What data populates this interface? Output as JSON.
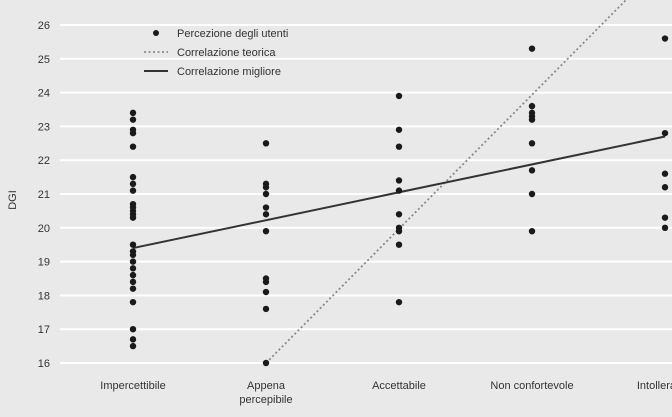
{
  "chart_data": {
    "type": "scatter",
    "title": "",
    "xlabel": "",
    "ylabel": "DGI",
    "ylim": [
      16,
      26
    ],
    "y_ticks": [
      16,
      17,
      18,
      19,
      20,
      21,
      22,
      23,
      24,
      25,
      26
    ],
    "grid": true,
    "categories": [
      [
        "Impercettibile"
      ],
      [
        "Appena",
        "percepibile"
      ],
      [
        "Accettabile"
      ],
      [
        "Non confortevole"
      ],
      [
        "Intollerabile"
      ]
    ],
    "legend": {
      "placement": "top-left",
      "entries": [
        {
          "label": "Percezione degli utenti",
          "marker": "dot"
        },
        {
          "label": "Correlazione teorica",
          "marker": "dotted-line"
        },
        {
          "label": "Correlazione migliore",
          "marker": "solid-line"
        }
      ]
    },
    "series": [
      {
        "name": "Percezione degli utenti",
        "kind": "points",
        "points": [
          [
            0,
            23.4
          ],
          [
            0,
            23.2
          ],
          [
            0,
            22.9
          ],
          [
            0,
            22.8
          ],
          [
            0,
            22.4
          ],
          [
            0,
            21.5
          ],
          [
            0,
            21.3
          ],
          [
            0,
            21.1
          ],
          [
            0,
            20.7
          ],
          [
            0,
            20.6
          ],
          [
            0,
            20.5
          ],
          [
            0,
            20.4
          ],
          [
            0,
            20.3
          ],
          [
            0,
            19.5
          ],
          [
            0,
            19.3
          ],
          [
            0,
            19.2
          ],
          [
            0,
            19.0
          ],
          [
            0,
            18.8
          ],
          [
            0,
            18.6
          ],
          [
            0,
            18.4
          ],
          [
            0,
            18.2
          ],
          [
            0,
            17.8
          ],
          [
            0,
            17.0
          ],
          [
            0,
            16.7
          ],
          [
            0,
            16.5
          ],
          [
            1,
            22.5
          ],
          [
            1,
            21.3
          ],
          [
            1,
            21.2
          ],
          [
            1,
            21.0
          ],
          [
            1,
            20.6
          ],
          [
            1,
            20.4
          ],
          [
            1,
            19.9
          ],
          [
            1,
            18.5
          ],
          [
            1,
            18.4
          ],
          [
            1,
            18.1
          ],
          [
            1,
            17.6
          ],
          [
            1,
            16.0
          ],
          [
            2,
            23.9
          ],
          [
            2,
            22.9
          ],
          [
            2,
            22.4
          ],
          [
            2,
            21.4
          ],
          [
            2,
            21.1
          ],
          [
            2,
            20.4
          ],
          [
            2,
            20.0
          ],
          [
            2,
            19.9
          ],
          [
            2,
            19.5
          ],
          [
            2,
            17.8
          ],
          [
            3,
            25.3
          ],
          [
            3,
            23.6
          ],
          [
            3,
            23.4
          ],
          [
            3,
            23.3
          ],
          [
            3,
            23.2
          ],
          [
            3,
            22.5
          ],
          [
            3,
            21.7
          ],
          [
            3,
            21.0
          ],
          [
            3,
            19.9
          ],
          [
            4,
            25.6
          ],
          [
            4,
            22.8
          ],
          [
            4,
            21.6
          ],
          [
            4,
            21.2
          ],
          [
            4,
            20.3
          ],
          [
            4,
            20.0
          ]
        ]
      },
      {
        "name": "Correlazione teorica",
        "kind": "line",
        "style": "dotted",
        "points": [
          [
            1,
            16.0
          ],
          [
            4.1,
            28.3
          ]
        ]
      },
      {
        "name": "Correlazione migliore",
        "kind": "line",
        "style": "solid",
        "points": [
          [
            0,
            19.4
          ],
          [
            4,
            22.7
          ]
        ]
      }
    ],
    "colors": {
      "background": "#e9e9e9",
      "grid": "#ffffff",
      "points": "#1a1a1a",
      "line_best": "#333333",
      "line_theoretical": "#8a8a8a",
      "text": "#333333"
    }
  }
}
